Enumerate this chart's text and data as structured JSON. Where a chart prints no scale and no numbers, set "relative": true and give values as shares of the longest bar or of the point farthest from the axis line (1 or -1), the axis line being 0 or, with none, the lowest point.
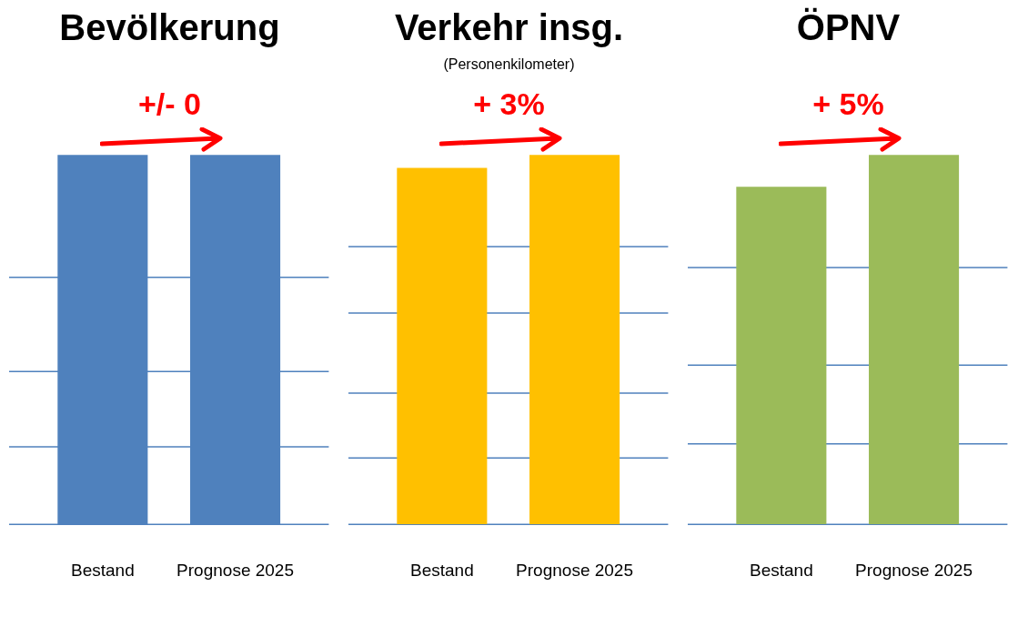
{
  "chart_data": [
    {
      "type": "bar",
      "title": "Bevölkerung",
      "categories": [
        "Bestand",
        "Prognose 2025"
      ],
      "values": [
        1,
        1
      ],
      "color": "#4f81bd",
      "relative": true,
      "annotations": [
        "+/- 0"
      ],
      "ref_lines": [
        {
          "axis": "y",
          "value": 0.21,
          "color": "#4f81bd"
        },
        {
          "axis": "y",
          "value": 0.414,
          "color": "#4f81bd"
        },
        {
          "axis": "y",
          "value": 0.669,
          "color": "#4f81bd"
        }
      ]
    },
    {
      "type": "bar",
      "title": "Verkehr insg.",
      "subtitle": "(Personenkilometer)",
      "categories": [
        "Bestand",
        "Prognose 2025"
      ],
      "values": [
        0.965,
        1
      ],
      "color": "#ffc000",
      "relative": true,
      "annotations": [
        "+ 3%"
      ],
      "ref_lines": [
        {
          "axis": "y",
          "value": 0.18,
          "color": "#4f81bd"
        },
        {
          "axis": "y",
          "value": 0.355,
          "color": "#4f81bd"
        },
        {
          "axis": "y",
          "value": 0.572,
          "color": "#4f81bd"
        },
        {
          "axis": "y",
          "value": 0.752,
          "color": "#4f81bd"
        }
      ]
    },
    {
      "type": "bar",
      "title": "ÖPNV",
      "categories": [
        "Bestand",
        "Prognose 2025"
      ],
      "values": [
        0.914,
        1
      ],
      "color": "#9bbb59",
      "relative": true,
      "annotations": [
        "+ 5%"
      ],
      "ref_lines": [
        {
          "axis": "y",
          "value": 0.218,
          "color": "#4f81bd"
        },
        {
          "axis": "y",
          "value": 0.431,
          "color": "#4f81bd"
        },
        {
          "axis": "y",
          "value": 0.695,
          "color": "#4f81bd"
        }
      ]
    }
  ]
}
